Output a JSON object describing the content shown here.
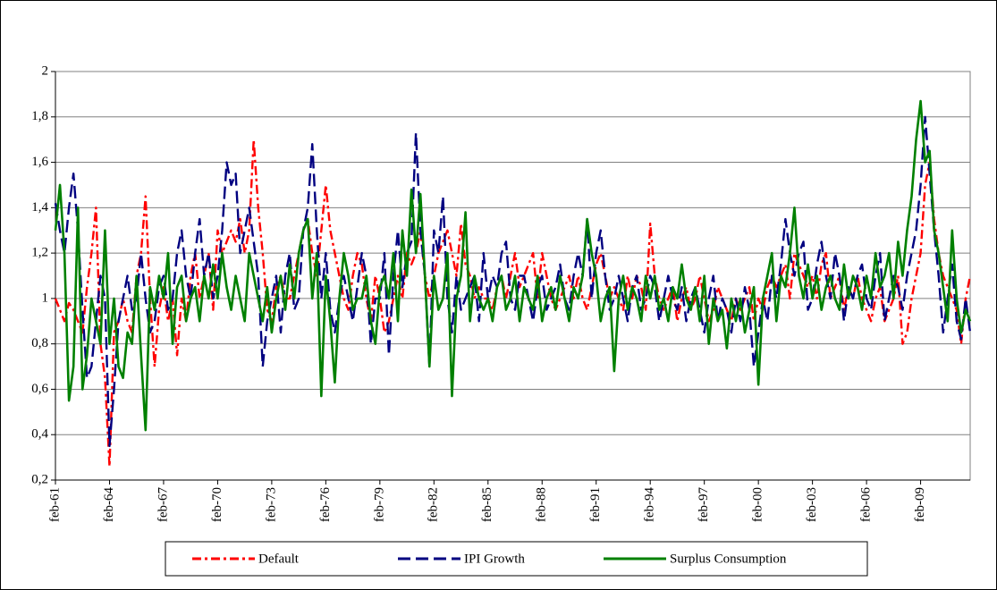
{
  "chart_data": {
    "type": "line",
    "categories": [
      "feb-61",
      null,
      null,
      null,
      null,
      null,
      null,
      null,
      null,
      null,
      null,
      null,
      "feb-64",
      null,
      null,
      null,
      null,
      null,
      null,
      null,
      null,
      null,
      null,
      null,
      "feb-67",
      null,
      null,
      null,
      null,
      null,
      null,
      null,
      null,
      null,
      null,
      null,
      "feb-70",
      null,
      null,
      null,
      null,
      null,
      null,
      null,
      null,
      null,
      null,
      null,
      "feb-73",
      null,
      null,
      null,
      null,
      null,
      null,
      null,
      null,
      null,
      null,
      null,
      "feb-76",
      null,
      null,
      null,
      null,
      null,
      null,
      null,
      null,
      null,
      null,
      null,
      "feb-79",
      null,
      null,
      null,
      null,
      null,
      null,
      null,
      null,
      null,
      null,
      null,
      "feb-82",
      null,
      null,
      null,
      null,
      null,
      null,
      null,
      null,
      null,
      null,
      null,
      "feb-85",
      null,
      null,
      null,
      null,
      null,
      null,
      null,
      null,
      null,
      null,
      null,
      "feb-88",
      null,
      null,
      null,
      null,
      null,
      null,
      null,
      null,
      null,
      null,
      null,
      "feb-91",
      null,
      null,
      null,
      null,
      null,
      null,
      null,
      null,
      null,
      null,
      null,
      "feb-94",
      null,
      null,
      null,
      null,
      null,
      null,
      null,
      null,
      null,
      null,
      null,
      "feb-97",
      null,
      null,
      null,
      null,
      null,
      null,
      null,
      null,
      null,
      null,
      null,
      "feb-00",
      null,
      null,
      null,
      null,
      null,
      null,
      null,
      null,
      null,
      null,
      null,
      "feb-03",
      null,
      null,
      null,
      null,
      null,
      null,
      null,
      null,
      null,
      null,
      null,
      "feb-06",
      null,
      null,
      null,
      null,
      null,
      null,
      null,
      null,
      null,
      null,
      null,
      "feb-09",
      null,
      null,
      null,
      null,
      null,
      null,
      null,
      null,
      null,
      null,
      null
    ],
    "series": [
      {
        "name": "Default",
        "color": "#ff0000",
        "dash": "dashdot",
        "values": [
          1.0,
          0.95,
          0.9,
          0.98,
          0.95,
          0.9,
          0.85,
          1.05,
          1.2,
          1.4,
          0.8,
          0.65,
          0.26,
          0.85,
          0.9,
          1.0,
          0.9,
          0.85,
          1.1,
          1.2,
          1.45,
          1.0,
          0.7,
          0.95,
          1.05,
          0.9,
          1.0,
          0.75,
          1.0,
          0.9,
          1.1,
          1.2,
          1.0,
          1.1,
          1.2,
          0.95,
          1.3,
          1.2,
          1.25,
          1.3,
          1.25,
          1.35,
          1.2,
          1.3,
          1.7,
          1.4,
          1.2,
          0.95,
          0.9,
          1.05,
          1.1,
          1.0,
          1.0,
          1.1,
          1.2,
          1.3,
          1.35,
          1.2,
          1.1,
          1.3,
          1.5,
          1.3,
          1.2,
          1.1,
          1.0,
          0.95,
          1.1,
          1.2,
          1.15,
          1.0,
          0.9,
          1.1,
          1.0,
          0.85,
          0.9,
          1.0,
          1.1,
          1.0,
          1.2,
          1.15,
          1.2,
          1.3,
          1.1,
          1.0,
          1.1,
          1.2,
          1.25,
          1.3,
          1.2,
          1.1,
          1.33,
          1.15,
          1.1,
          1.0,
          1.05,
          1.0,
          1.0,
          0.95,
          1.05,
          1.1,
          1.0,
          1.1,
          1.2,
          1.05,
          1.1,
          1.15,
          1.2,
          1.0,
          1.2,
          1.1,
          1.0,
          0.95,
          1.0,
          1.05,
          1.1,
          1.0,
          1.1,
          1.0,
          0.95,
          1.05,
          1.15,
          1.2,
          1.1,
          1.0,
          1.05,
          1.0,
          0.95,
          1.1,
          1.0,
          1.1,
          1.05,
          0.95,
          1.33,
          1.1,
          1.0,
          0.95,
          1.0,
          1.05,
          0.9,
          1.0,
          1.05,
          0.95,
          1.0,
          1.1,
          1.0,
          0.9,
          0.95,
          1.05,
          1.0,
          0.95,
          0.9,
          1.0,
          0.95,
          1.0,
          1.05,
          0.9,
          1.0,
          0.95,
          1.05,
          1.1,
          1.05,
          1.1,
          1.15,
          1.0,
          1.2,
          1.15,
          1.1,
          1.05,
          1.1,
          1.0,
          1.15,
          1.2,
          1.0,
          1.05,
          1.1,
          0.95,
          1.05,
          1.0,
          1.1,
          1.0,
          0.95,
          0.9,
          1.0,
          1.05,
          0.9,
          0.95,
          1.0,
          1.1,
          0.8,
          0.85,
          1.0,
          1.1,
          1.2,
          1.5,
          1.6,
          1.35,
          1.2,
          1.1,
          1.05,
          1.0,
          0.95,
          0.8,
          1.0,
          1.1
        ]
      },
      {
        "name": "IPI Growth",
        "color": "#000080",
        "dash": "dash",
        "values": [
          1.42,
          1.3,
          1.2,
          1.4,
          1.55,
          1.3,
          0.95,
          0.65,
          0.7,
          0.9,
          1.1,
          1.0,
          0.35,
          0.6,
          0.9,
          1.0,
          1.1,
          0.95,
          1.0,
          1.2,
          1.0,
          0.85,
          0.9,
          1.05,
          1.1,
          0.95,
          1.0,
          1.2,
          1.3,
          1.1,
          1.0,
          1.2,
          1.35,
          1.1,
          1.2,
          1.0,
          1.1,
          1.3,
          1.6,
          1.5,
          1.55,
          1.2,
          1.3,
          1.4,
          1.25,
          1.1,
          0.7,
          0.9,
          1.0,
          1.1,
          0.85,
          1.1,
          1.2,
          0.95,
          1.0,
          1.3,
          1.4,
          1.68,
          1.3,
          1.0,
          1.2,
          0.95,
          0.85,
          1.0,
          1.1,
          1.0,
          0.9,
          1.05,
          1.2,
          1.1,
          0.8,
          1.0,
          1.0,
          1.2,
          0.75,
          1.1,
          1.3,
          1.05,
          1.2,
          1.25,
          1.73,
          1.3,
          1.1,
          0.7,
          1.3,
          1.2,
          1.45,
          1.0,
          0.85,
          1.1,
          0.95,
          1.0,
          1.05,
          1.1,
          0.9,
          1.2,
          1.0,
          1.1,
          1.05,
          1.2,
          1.25,
          1.0,
          0.95,
          1.1,
          1.1,
          1.0,
          0.9,
          1.05,
          1.1,
          0.95,
          1.0,
          1.05,
          1.15,
          1.0,
          0.95,
          1.1,
          1.2,
          1.1,
          1.35,
          1.0,
          1.2,
          1.3,
          1.1,
          0.95,
          1.0,
          1.1,
          1.0,
          0.9,
          1.05,
          1.1,
          0.95,
          1.0,
          1.1,
          1.05,
          0.9,
          1.0,
          1.1,
          1.0,
          0.95,
          1.05,
          0.9,
          1.0,
          1.05,
          0.95,
          0.85,
          1.0,
          1.1,
          0.9,
          1.0,
          0.95,
          0.85,
          1.0,
          0.9,
          1.05,
          0.95,
          0.7,
          0.85,
          1.0,
          0.9,
          1.1,
          1.0,
          1.15,
          1.35,
          1.2,
          1.1,
          1.2,
          1.25,
          0.95,
          1.0,
          1.15,
          1.25,
          1.1,
          1.0,
          1.2,
          1.1,
          0.9,
          1.05,
          1.0,
          1.1,
          1.15,
          1.0,
          0.95,
          1.1,
          1.2,
          0.9,
          1.0,
          1.1,
          1.05,
          0.95,
          1.1,
          1.2,
          1.3,
          1.5,
          1.8,
          1.55,
          1.3,
          1.1,
          0.85,
          1.0,
          1.15,
          0.9,
          0.82,
          1.0,
          0.85
        ]
      },
      {
        "name": "Surplus Consumption",
        "color": "#008000",
        "dash": "solid",
        "values": [
          1.3,
          1.5,
          1.2,
          0.55,
          0.7,
          1.4,
          0.6,
          0.75,
          1.0,
          0.9,
          0.8,
          1.3,
          0.8,
          1.0,
          0.7,
          0.65,
          0.85,
          0.8,
          1.1,
          0.75,
          0.42,
          1.05,
          0.95,
          1.1,
          1.0,
          1.2,
          0.8,
          1.05,
          1.1,
          0.9,
          1.0,
          1.05,
          0.9,
          1.1,
          1.0,
          1.15,
          1.0,
          1.2,
          1.05,
          0.95,
          1.1,
          1.0,
          0.9,
          1.2,
          1.1,
          1.0,
          0.9,
          1.05,
          0.85,
          1.0,
          1.1,
          0.95,
          1.15,
          1.0,
          1.2,
          1.3,
          1.35,
          1.0,
          1.2,
          0.57,
          1.1,
          0.9,
          0.63,
          1.0,
          1.2,
          1.1,
          0.95,
          1.0,
          1.0,
          1.1,
          0.9,
          0.8,
          1.05,
          1.1,
          1.0,
          1.2,
          0.9,
          1.3,
          1.1,
          1.48,
          1.2,
          1.46,
          1.1,
          0.7,
          1.1,
          0.95,
          1.0,
          1.2,
          0.57,
          1.0,
          1.1,
          1.38,
          0.9,
          1.1,
          1.0,
          0.95,
          1.0,
          0.9,
          1.05,
          1.1,
          0.95,
          1.0,
          1.1,
          0.9,
          1.05,
          1.0,
          0.95,
          1.1,
          0.9,
          1.0,
          1.05,
          0.95,
          1.1,
          1.0,
          0.9,
          1.05,
          1.0,
          1.1,
          1.35,
          1.2,
          1.1,
          0.9,
          1.0,
          1.05,
          0.68,
          1.0,
          1.1,
          0.95,
          1.05,
          1.0,
          0.9,
          1.1,
          1.0,
          1.1,
          0.95,
          1.0,
          0.9,
          1.05,
          1.0,
          1.15,
          1.0,
          0.95,
          1.05,
          0.9,
          1.1,
          0.8,
          1.0,
          0.9,
          0.95,
          0.78,
          1.0,
          0.9,
          1.0,
          0.85,
          0.95,
          1.05,
          0.62,
          1.0,
          1.1,
          1.2,
          0.9,
          1.1,
          1.05,
          1.2,
          1.4,
          1.1,
          1.0,
          1.15,
          1.0,
          1.1,
          0.95,
          1.05,
          1.1,
          1.0,
          0.95,
          1.15,
          1.0,
          1.1,
          1.05,
          0.95,
          1.1,
          1.0,
          1.2,
          1.05,
          1.1,
          1.2,
          1.0,
          1.25,
          1.1,
          1.3,
          1.45,
          1.7,
          1.87,
          1.6,
          1.65,
          1.3,
          1.2,
          1.05,
          0.9,
          1.3,
          1.0,
          0.85,
          0.95,
          0.9
        ]
      }
    ],
    "ylim": [
      0.2,
      2
    ],
    "yticks": [
      {
        "value": 0.2,
        "label": "0,2"
      },
      {
        "value": 0.4,
        "label": "0,4"
      },
      {
        "value": 0.6,
        "label": "0,6"
      },
      {
        "value": 0.8,
        "label": "0,8"
      },
      1,
      {
        "value": 1.2,
        "label": "1,2"
      },
      {
        "value": 1.4,
        "label": "1,4"
      },
      {
        "value": 1.6,
        "label": "1,6"
      },
      {
        "value": 1.8,
        "label": "1,8"
      },
      2
    ],
    "grid": true,
    "legend": "bottom"
  }
}
